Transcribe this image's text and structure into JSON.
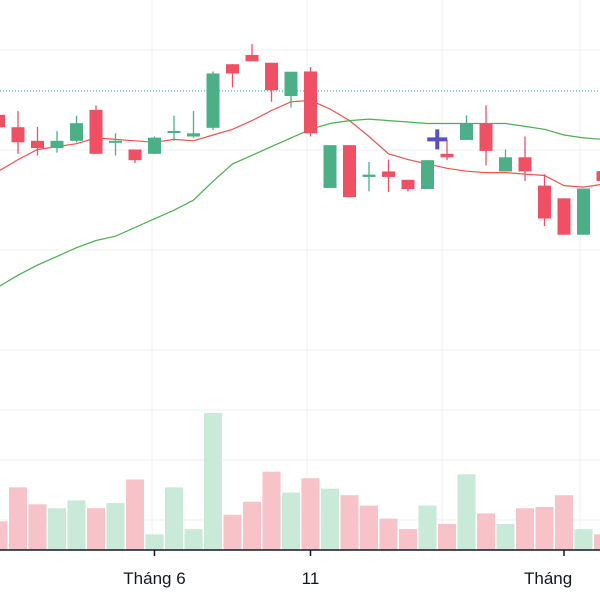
{
  "chart_data": {
    "type": "candlestick",
    "grid": true,
    "x_axis": {
      "tick_labels": [
        {
          "index": 7,
          "label": "Tháng 6"
        },
        {
          "index": 15,
          "label": "11"
        },
        {
          "index": 28,
          "label": "Tháng"
        }
      ]
    },
    "y_range": [
      0,
      100
    ],
    "reference_line": {
      "value": 83.8,
      "style": "dotted",
      "color": "#26a69a"
    },
    "candles": [
      {
        "i": -1,
        "open": 75.5,
        "high": 78.2,
        "low": 67.6,
        "close": 71.2
      },
      {
        "i": 0,
        "open": 71.2,
        "high": 76.8,
        "low": 62.0,
        "close": 66.0
      },
      {
        "i": 1,
        "open": 66.5,
        "high": 71.3,
        "low": 61.4,
        "close": 64.0
      },
      {
        "i": 2,
        "open": 64.0,
        "high": 69.9,
        "low": 62.4,
        "close": 66.5
      },
      {
        "i": 3,
        "open": 66.5,
        "high": 75.2,
        "low": 65.9,
        "close": 72.6
      },
      {
        "i": 4,
        "open": 77.2,
        "high": 78.8,
        "low": 62.0,
        "close": 62.0
      },
      {
        "i": 5,
        "open": 66.5,
        "high": 69.1,
        "low": 61.4,
        "close": 66.5
      },
      {
        "i": 6,
        "open": 63.5,
        "high": 63.5,
        "low": 58.8,
        "close": 59.8
      },
      {
        "i": 7,
        "open": 62.0,
        "high": 68.0,
        "low": 62.0,
        "close": 67.6
      },
      {
        "i": 8,
        "open": 69.9,
        "high": 75.2,
        "low": 66.5,
        "close": 69.9
      },
      {
        "i": 9,
        "open": 68.0,
        "high": 76.8,
        "low": 67.6,
        "close": 69.1
      },
      {
        "i": 10,
        "open": 71.0,
        "high": 90.5,
        "low": 70.2,
        "close": 89.8
      },
      {
        "i": 11,
        "open": 93.0,
        "high": 93.0,
        "low": 85.0,
        "close": 89.8
      },
      {
        "i": 12,
        "open": 96.2,
        "high": 100.0,
        "low": 94.0,
        "close": 94.0
      },
      {
        "i": 13,
        "open": 93.5,
        "high": 93.5,
        "low": 80.0,
        "close": 84.0
      },
      {
        "i": 14,
        "open": 82.0,
        "high": 90.4,
        "low": 78.0,
        "close": 90.4
      },
      {
        "i": 15,
        "open": 90.5,
        "high": 92.0,
        "low": 68.0,
        "close": 69.1
      },
      {
        "i": 16,
        "open": 50.2,
        "high": 65.0,
        "low": 50.2,
        "close": 65.0
      },
      {
        "i": 17,
        "open": 65.0,
        "high": 65.0,
        "low": 47.0,
        "close": 47.0
      },
      {
        "i": 18,
        "open": 54.0,
        "high": 59.2,
        "low": 49.0,
        "close": 54.8
      },
      {
        "i": 19,
        "open": 55.9,
        "high": 60.0,
        "low": 48.8,
        "close": 54.0
      },
      {
        "i": 20,
        "open": 53.0,
        "high": 53.0,
        "low": 49.0,
        "close": 49.8
      },
      {
        "i": 21,
        "open": 49.8,
        "high": 59.8,
        "low": 49.8,
        "close": 59.8
      },
      {
        "i": 22,
        "open": 62.0,
        "high": 66.8,
        "low": 59.8,
        "close": 60.8
      },
      {
        "i": 23,
        "open": 66.8,
        "high": 75.3,
        "low": 66.8,
        "close": 72.4
      },
      {
        "i": 24,
        "open": 72.4,
        "high": 78.8,
        "low": 58.0,
        "close": 63.0
      },
      {
        "i": 25,
        "open": 55.9,
        "high": 63.5,
        "low": 55.9,
        "close": 60.8
      },
      {
        "i": 26,
        "open": 60.8,
        "high": 68.0,
        "low": 52.6,
        "close": 55.9
      },
      {
        "i": 27,
        "open": 51.0,
        "high": 55.0,
        "low": 37.0,
        "close": 39.6
      },
      {
        "i": 28,
        "open": 46.6,
        "high": 46.6,
        "low": 34.0,
        "close": 34.0
      },
      {
        "i": 29,
        "open": 34.0,
        "high": 50.0,
        "low": 34.0,
        "close": 50.0
      },
      {
        "i": 30,
        "open": 56.0,
        "high": 60.0,
        "low": 51.0,
        "close": 52.6
      }
    ],
    "volume": {
      "bars": [
        {
          "i": -1,
          "value": 22,
          "up": false
        },
        {
          "i": 0,
          "value": 48,
          "up": false
        },
        {
          "i": 1,
          "value": 35,
          "up": false
        },
        {
          "i": 2,
          "value": 32,
          "up": true
        },
        {
          "i": 3,
          "value": 38,
          "up": true
        },
        {
          "i": 4,
          "value": 32,
          "up": false
        },
        {
          "i": 5,
          "value": 36,
          "up": true
        },
        {
          "i": 6,
          "value": 54,
          "up": false
        },
        {
          "i": 7,
          "value": 12,
          "up": true
        },
        {
          "i": 8,
          "value": 48,
          "up": true
        },
        {
          "i": 9,
          "value": 16,
          "up": true
        },
        {
          "i": 10,
          "value": 105,
          "up": true
        },
        {
          "i": 11,
          "value": 27,
          "up": false
        },
        {
          "i": 12,
          "value": 37,
          "up": false
        },
        {
          "i": 13,
          "value": 60,
          "up": false
        },
        {
          "i": 14,
          "value": 44,
          "up": true
        },
        {
          "i": 15,
          "value": 55,
          "up": false
        },
        {
          "i": 16,
          "value": 47,
          "up": true
        },
        {
          "i": 17,
          "value": 42,
          "up": false
        },
        {
          "i": 18,
          "value": 34,
          "up": false
        },
        {
          "i": 19,
          "value": 24,
          "up": false
        },
        {
          "i": 20,
          "value": 16,
          "up": false
        },
        {
          "i": 21,
          "value": 34,
          "up": true
        },
        {
          "i": 22,
          "value": 20,
          "up": false
        },
        {
          "i": 23,
          "value": 58,
          "up": true
        },
        {
          "i": 24,
          "value": 28,
          "up": false
        },
        {
          "i": 25,
          "value": 20,
          "up": true
        },
        {
          "i": 26,
          "value": 32,
          "up": false
        },
        {
          "i": 27,
          "value": 33,
          "up": false
        },
        {
          "i": 28,
          "value": 42,
          "up": false
        },
        {
          "i": 29,
          "value": 16,
          "up": true
        },
        {
          "i": 30,
          "value": 12,
          "up": false
        }
      ]
    },
    "moving_averages": [
      {
        "color": "#ef5350",
        "points": [
          [
            -1,
            56
          ],
          [
            0,
            60
          ],
          [
            1,
            63.5
          ],
          [
            2,
            64.5
          ],
          [
            3,
            65.5
          ],
          [
            4,
            67.5
          ],
          [
            5,
            67.0
          ],
          [
            6,
            66.5
          ],
          [
            7,
            66.0
          ],
          [
            8,
            67.0
          ],
          [
            9,
            66.5
          ],
          [
            10,
            68.5
          ],
          [
            11,
            70.5
          ],
          [
            12,
            73.5
          ],
          [
            13,
            77.0
          ],
          [
            14,
            80.0
          ],
          [
            15,
            80.5
          ],
          [
            16,
            77.5
          ],
          [
            17,
            73.5
          ],
          [
            18,
            68.0
          ],
          [
            19,
            62.0
          ],
          [
            20,
            60.0
          ],
          [
            21,
            58.5
          ],
          [
            22,
            57.0
          ],
          [
            23,
            56.0
          ],
          [
            24,
            55.5
          ],
          [
            25,
            55.5
          ],
          [
            26,
            55.0
          ],
          [
            27,
            54.5
          ],
          [
            28,
            51.0
          ],
          [
            29,
            50.5
          ],
          [
            30,
            51.5
          ]
        ]
      },
      {
        "color": "#4caf50",
        "points": [
          [
            -1,
            16
          ],
          [
            0,
            20
          ],
          [
            1,
            23.5
          ],
          [
            2,
            26.5
          ],
          [
            3,
            29.5
          ],
          [
            4,
            32.0
          ],
          [
            5,
            33.5
          ],
          [
            6,
            36.5
          ],
          [
            7,
            39.5
          ],
          [
            8,
            42.5
          ],
          [
            9,
            46.0
          ],
          [
            10,
            52.5
          ],
          [
            11,
            58.5
          ],
          [
            12,
            61.5
          ],
          [
            13,
            64.5
          ],
          [
            14,
            67.5
          ],
          [
            15,
            70.5
          ],
          [
            16,
            72.5
          ],
          [
            17,
            73.5
          ],
          [
            18,
            74.0
          ],
          [
            19,
            73.5
          ],
          [
            20,
            73.0
          ],
          [
            21,
            72.5
          ],
          [
            22,
            72.5
          ],
          [
            23,
            72.5
          ],
          [
            24,
            72.5
          ],
          [
            25,
            72.5
          ],
          [
            26,
            71.5
          ],
          [
            27,
            70.5
          ],
          [
            28,
            68.5
          ],
          [
            29,
            67.5
          ],
          [
            30,
            67.0
          ]
        ]
      }
    ],
    "crosshair_marker": {
      "i": 21.5,
      "value": 67.0,
      "color": "#5b4fc4"
    },
    "colors": {
      "up": "#4caf87",
      "down": "#ef5064",
      "up_volume": "#c9ead9",
      "down_volume": "#f8c3c8",
      "grid": "#eef0f3",
      "axis": "#131722"
    }
  }
}
